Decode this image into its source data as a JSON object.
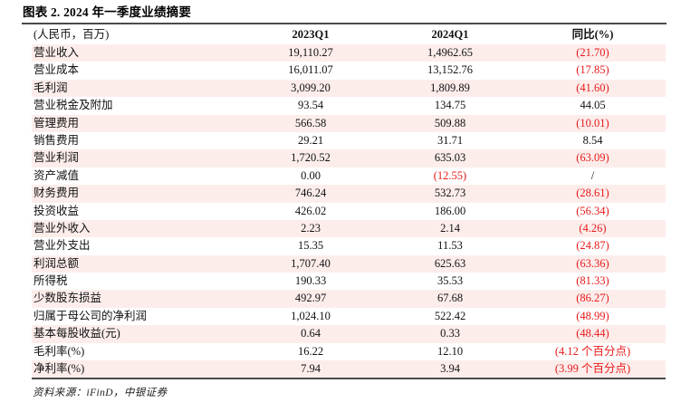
{
  "title": "图表 2. 2024 年一季度业绩摘要",
  "source": "资料来源：iFinD，中银证券",
  "colors": {
    "row_pink": "#fcedeb",
    "negative_red": "#e81a1a",
    "rule_dark": "#4a4a4a",
    "text": "#111111",
    "background": "#ffffff"
  },
  "table": {
    "headers": [
      "(人民币，百万)",
      "2023Q1",
      "2024Q1",
      "同比(%)"
    ],
    "rows": [
      [
        "营业收入",
        "19,110.27",
        "1,4962.65",
        "(21.70)"
      ],
      [
        "营业成本",
        "16,011.07",
        "13,152.76",
        "(17.85)"
      ],
      [
        "毛利润",
        "3,099.20",
        "1,809.89",
        "(41.60)"
      ],
      [
        "营业税金及附加",
        "93.54",
        "134.75",
        "44.05"
      ],
      [
        "管理费用",
        "566.58",
        "509.88",
        "(10.01)"
      ],
      [
        "销售费用",
        "29.21",
        "31.71",
        "8.54"
      ],
      [
        "营业利润",
        "1,720.52",
        "635.03",
        "(63.09)"
      ],
      [
        "资产减值",
        "0.00",
        "(12.55)",
        "/"
      ],
      [
        "财务费用",
        "746.24",
        "532.73",
        "(28.61)"
      ],
      [
        "投资收益",
        "426.02",
        "186.00",
        "(56.34)"
      ],
      [
        "营业外收入",
        "2.23",
        "2.14",
        "(4.26)"
      ],
      [
        "营业外支出",
        "15.35",
        "11.53",
        "(24.87)"
      ],
      [
        "利润总额",
        "1,707.40",
        "625.63",
        "(63.36)"
      ],
      [
        "所得税",
        "190.33",
        "35.53",
        "(81.33)"
      ],
      [
        "少数股东损益",
        "492.97",
        "67.68",
        "(86.27)"
      ],
      [
        "归属于母公司的净利润",
        "1,024.10",
        "522.42",
        "(48.99)"
      ],
      [
        "基本每股收益(元)",
        "0.64",
        "0.33",
        "(48.44)"
      ],
      [
        "毛利率(%)",
        "16.22",
        "12.10",
        "(4.12 个百分点)"
      ],
      [
        "净利率(%)",
        "7.94",
        "3.94",
        "(3.99 个百分点)"
      ]
    ]
  }
}
